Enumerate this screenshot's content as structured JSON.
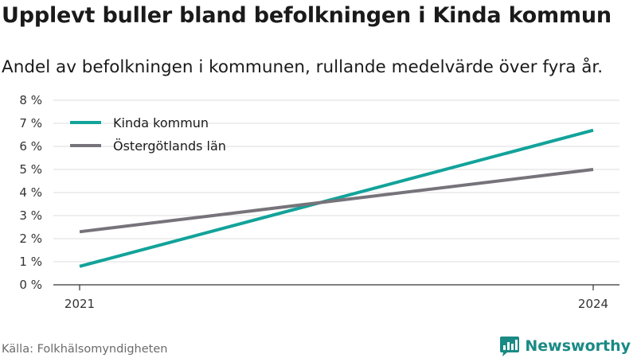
{
  "title": "Upplevt buller bland befolkningen i Kinda kommun",
  "subtitle": "Andel av befolkningen i kommunen, rullande medelvärde över fyra år.",
  "source": "Källa: Folkhälsomyndigheten",
  "brand": {
    "name": "Newsworthy",
    "icon": "newsworthy-logo-icon",
    "color": "#1a8a84"
  },
  "chart_data": {
    "type": "line",
    "x": [
      "2021",
      "2024"
    ],
    "series": [
      {
        "name": "Kinda kommun",
        "values": [
          0.8,
          6.7
        ],
        "color": "#12a39a"
      },
      {
        "name": "Östergötlands län",
        "values": [
          2.3,
          5.0
        ],
        "color": "#76737a"
      }
    ],
    "y_ticks": [
      "0 %",
      "1 %",
      "2 %",
      "3 %",
      "4 %",
      "5 %",
      "6 %",
      "7 %",
      "8 %"
    ],
    "ylim": [
      0,
      8
    ],
    "x_ticks": [
      "2021",
      "2024"
    ],
    "grid": true,
    "legend_position": "top-left"
  }
}
